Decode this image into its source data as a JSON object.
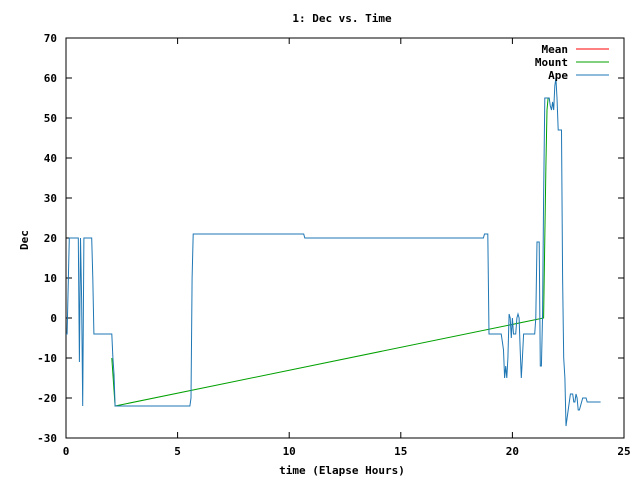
{
  "chart_data": {
    "type": "line",
    "title": "1: Dec vs. Time",
    "xlabel": "time (Elapse Hours)",
    "ylabel": "Dec",
    "xlim": [
      0,
      25
    ],
    "ylim": [
      -30,
      70
    ],
    "xticks": [
      "0",
      "5",
      "10",
      "15",
      "20",
      "25"
    ],
    "yticks": [
      "-30",
      "-20",
      "-10",
      "0",
      "10",
      "20",
      "30",
      "40",
      "50",
      "60",
      "70"
    ],
    "grid": false,
    "legend_position": "top-right",
    "series": [
      {
        "name": "Mean",
        "color": "#ff0000",
        "x": [],
        "y": []
      },
      {
        "name": "Mount",
        "color": "#00a000",
        "x": [
          2.05,
          2.1,
          2.15,
          2.2,
          21.4,
          21.45,
          21.5,
          21.55,
          21.6
        ],
        "y": [
          -10,
          -14,
          -18,
          -22,
          0,
          20,
          38,
          52,
          55
        ]
      },
      {
        "name": "Ape",
        "color": "#1f77b4",
        "x": [
          0.0,
          0.05,
          0.1,
          0.15,
          0.2,
          0.25,
          0.3,
          0.55,
          0.6,
          0.65,
          0.7,
          0.75,
          0.8,
          1.05,
          1.1,
          1.15,
          1.2,
          1.25,
          1.9,
          2.0,
          2.05,
          2.1,
          2.15,
          2.2,
          5.5,
          5.55,
          5.6,
          5.65,
          5.7,
          10.65,
          10.7,
          10.75,
          18.7,
          18.75,
          18.9,
          18.95,
          19.0,
          19.05,
          19.1,
          19.5,
          19.55,
          19.6,
          19.65,
          19.7,
          19.75,
          19.8,
          19.85,
          19.9,
          19.95,
          20.0,
          20.05,
          20.1,
          20.15,
          20.2,
          20.25,
          20.3,
          20.35,
          20.4,
          20.45,
          20.5,
          20.55,
          20.6,
          20.65,
          20.7,
          20.75,
          20.8,
          20.85,
          20.9,
          20.95,
          21.0,
          21.05,
          21.1,
          21.15,
          21.2,
          21.25,
          21.3,
          21.35,
          21.4,
          21.45,
          21.5,
          21.55,
          21.6,
          21.65,
          21.7,
          21.75,
          21.8,
          21.85,
          21.9,
          21.95,
          22.0,
          22.05,
          22.1,
          22.15,
          22.2,
          22.25,
          22.3,
          22.35,
          22.4,
          22.45,
          22.5,
          22.55,
          22.6,
          22.65,
          22.7,
          22.75,
          22.8,
          22.85,
          22.9,
          22.95,
          23.0,
          23.05,
          23.1,
          23.15,
          23.2,
          23.25,
          23.3,
          23.35,
          23.4,
          23.45,
          23.5,
          23.55,
          23.6,
          23.65,
          23.7,
          23.75,
          23.8,
          23.85,
          23.9,
          23.95
        ],
        "y": [
          -4,
          -4,
          8,
          20,
          20,
          20,
          20,
          20,
          -11,
          20,
          5,
          -22,
          20,
          20,
          20,
          20,
          10,
          -4,
          -4,
          -4,
          -4,
          -10,
          -14,
          -22,
          -22,
          -22,
          -20,
          10,
          21,
          21,
          20,
          20,
          20,
          21,
          21,
          -4,
          -4,
          -4,
          -4,
          -4,
          -6,
          -8,
          -15,
          -12,
          -15,
          -10,
          1,
          0,
          -5,
          0,
          -4,
          -4,
          -4,
          0,
          1,
          0,
          -8,
          -15,
          -10,
          -4,
          -4,
          -4,
          -4,
          -4,
          -4,
          -4,
          -4,
          -4,
          -4,
          -4,
          0,
          19,
          19,
          19,
          -12,
          -12,
          0,
          30,
          55,
          55,
          55,
          55,
          55,
          53,
          52,
          54,
          52,
          58,
          60,
          55,
          47,
          47,
          47,
          47,
          10,
          -10,
          -15,
          -27,
          -25,
          -23,
          -21,
          -19,
          -19,
          -19,
          -21,
          -21,
          -19,
          -20,
          -23,
          -23,
          -22,
          -21,
          -20,
          -20,
          -20,
          -20,
          -21,
          -21,
          -21,
          -21,
          -21,
          -21,
          -21,
          -21,
          -21,
          -21,
          -21,
          -21,
          -21
        ]
      }
    ]
  }
}
